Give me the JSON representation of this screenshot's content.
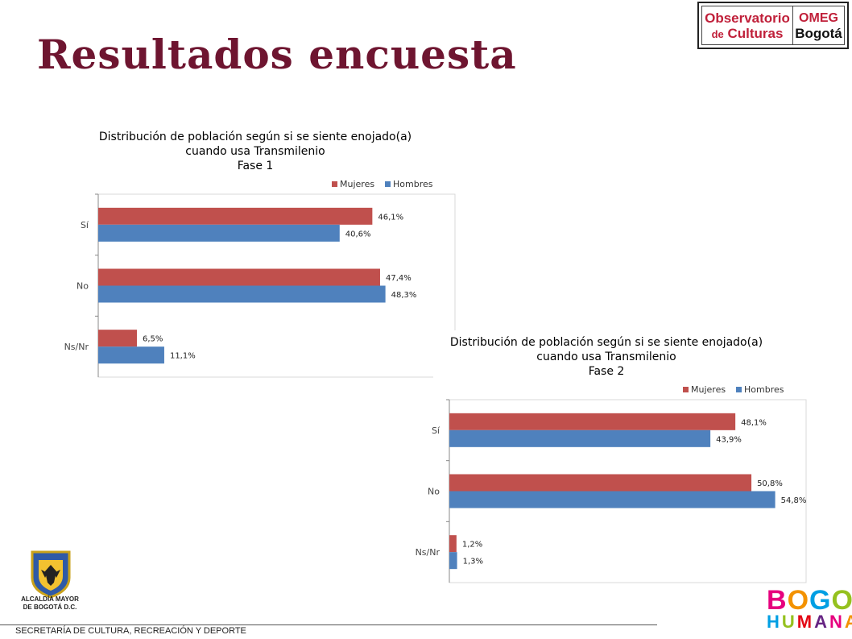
{
  "slide_title": "Resultados encuesta",
  "logo_observatorio": {
    "line1": "Observatorio",
    "line2_prefix": "de",
    "line2_main": "Culturas",
    "omeg": "OMEG",
    "city": "Bogotá"
  },
  "footer": "SECRETARÍA DE CULTURA, RECREACIÓN Y DEPORTE",
  "logo_alcaldia": {
    "line1": "ALCALDÍA MAYOR",
    "line2": "DE BOGOTÁ D.C."
  },
  "logo_bogota_humana": {
    "line1": "BOGOTÁ",
    "line2": "HUMANA",
    "colors": [
      "#e6007e",
      "#f39200",
      "#009fe3",
      "#95c11f",
      "#e30613",
      "#662483"
    ]
  },
  "colors": {
    "mujeres": "#c0504d",
    "hombres": "#4f81bd",
    "title": "#6e1530"
  },
  "chart_data": [
    {
      "type": "bar",
      "orientation": "horizontal",
      "title_lines": [
        "Distribución de población según si se siente enojado(a)",
        "cuando usa Transmilenio",
        "Fase 1"
      ],
      "categories": [
        "Sí",
        "No",
        "Ns/Nr"
      ],
      "series": [
        {
          "name": "Mujeres",
          "values": [
            46.1,
            47.4,
            6.5
          ],
          "labels": [
            "46,1%",
            "47,4%",
            "6,5%"
          ]
        },
        {
          "name": "Hombres",
          "values": [
            40.6,
            48.3,
            11.1
          ],
          "labels": [
            "40,6%",
            "48,3%",
            "11,1%"
          ]
        }
      ],
      "xlim": [
        0,
        60
      ],
      "legend": "top-right",
      "grid": false
    },
    {
      "type": "bar",
      "orientation": "horizontal",
      "title_lines": [
        "Distribución de población según si se siente enojado(a)",
        "cuando usa Transmilenio",
        "Fase 2"
      ],
      "categories": [
        "Sí",
        "No",
        "Ns/Nr"
      ],
      "series": [
        {
          "name": "Mujeres",
          "values": [
            48.1,
            50.8,
            1.2
          ],
          "labels": [
            "48,1%",
            "50,8%",
            "1,2%"
          ]
        },
        {
          "name": "Hombres",
          "values": [
            43.9,
            54.8,
            1.3
          ],
          "labels": [
            "43,9%",
            "54,8%",
            "1,3%"
          ]
        }
      ],
      "xlim": [
        0,
        60
      ],
      "legend": "top-right",
      "grid": false
    }
  ]
}
